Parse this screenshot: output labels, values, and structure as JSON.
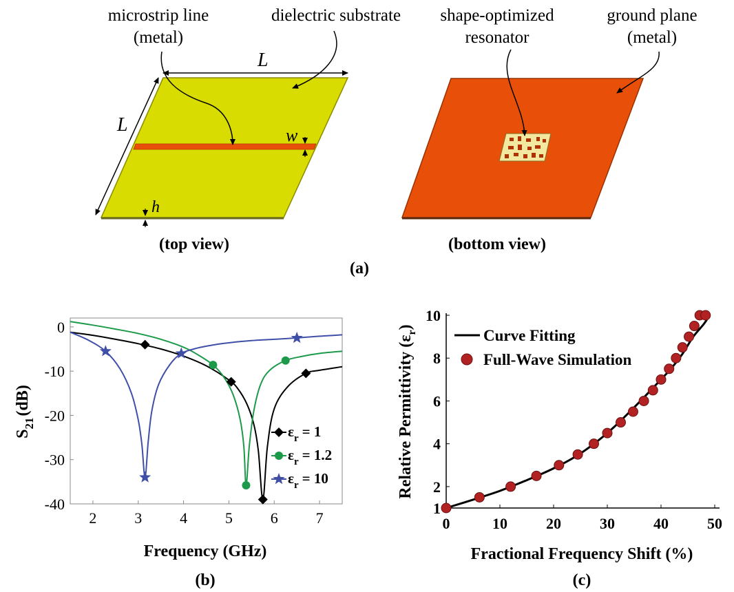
{
  "figure_a": {
    "callouts": {
      "microstrip_1": "microstrip line",
      "microstrip_2": "(metal)",
      "substrate": "dielectric substrate",
      "resonator_1": "shape-optimized",
      "resonator_2": "resonator",
      "ground_1": "ground plane",
      "ground_2": "(metal)"
    },
    "dims": {
      "L_top": "L",
      "L_side": "L",
      "w": "w",
      "h": "h"
    },
    "top_view": "(top view)",
    "bottom_view": "(bottom view)",
    "panel": "(a)",
    "colors": {
      "substrate": "#D8DC00",
      "metal": "#E8500A",
      "resonator_bg": "#F3E8A0"
    }
  },
  "chart_data": [
    {
      "type": "line",
      "panel": "(b)",
      "xlabel": "Frequency (GHz)",
      "ylabel_main": "S",
      "ylabel_sub": "21",
      "ylabel_unit": "(dB)",
      "xlim": [
        1.5,
        7.5
      ],
      "ylim": [
        -40,
        2
      ],
      "xticks": [
        "2",
        "3",
        "4",
        "5",
        "6",
        "7"
      ],
      "yticks": [
        "0",
        "-10",
        "-20",
        "-30",
        "-40"
      ],
      "series": [
        {
          "legend_label": "ε",
          "legend_sub": "r",
          "legend_value": "= 1",
          "color": "#000000",
          "marker": "diamond",
          "x": [
            1.5,
            2.0,
            2.5,
            3.0,
            3.5,
            4.0,
            4.5,
            5.0,
            5.2,
            5.4,
            5.55,
            5.65,
            5.75,
            5.85,
            6.0,
            6.3,
            6.7,
            7.0,
            7.5
          ],
          "y": [
            -1.2,
            -1.9,
            -2.8,
            -3.8,
            -5.0,
            -6.6,
            -8.8,
            -12.0,
            -14.0,
            -17.5,
            -22.0,
            -28.0,
            -39.0,
            -27.0,
            -18.5,
            -13.5,
            -10.5,
            -9.8,
            -9.0
          ],
          "marker_x": [
            3.15,
            5.05,
            5.75,
            6.7
          ],
          "marker_y": [
            -4.0,
            -12.4,
            -39.0,
            -10.5
          ]
        },
        {
          "legend_label": "ε",
          "legend_sub": "r",
          "legend_value": "= 1.2",
          "color": "#1C9A4A",
          "marker": "circle",
          "x": [
            1.5,
            2.0,
            2.5,
            3.0,
            3.5,
            4.0,
            4.3,
            4.65,
            4.9,
            5.1,
            5.25,
            5.33,
            5.38,
            5.45,
            5.55,
            5.7,
            5.9,
            6.25,
            6.6,
            7.0,
            7.5
          ],
          "y": [
            1.2,
            0.4,
            -0.5,
            -1.5,
            -2.8,
            -4.6,
            -6.2,
            -8.6,
            -11.5,
            -15.5,
            -21.0,
            -27.0,
            -35.8,
            -27.0,
            -19.0,
            -13.0,
            -9.8,
            -7.6,
            -6.7,
            -6.0,
            -5.5
          ],
          "marker_x": [
            4.65,
            5.38,
            6.25
          ],
          "marker_y": [
            -8.6,
            -35.8,
            -7.6
          ]
        },
        {
          "legend_label": "ε",
          "legend_sub": "r",
          "legend_value": "= 10",
          "color": "#3F4FA8",
          "marker": "star",
          "x": [
            1.5,
            1.9,
            2.28,
            2.6,
            2.85,
            3.0,
            3.08,
            3.15,
            3.22,
            3.3,
            3.45,
            3.7,
            3.95,
            4.3,
            4.7,
            5.0,
            5.5,
            6.0,
            6.5,
            7.0,
            7.5
          ],
          "y": [
            -1.2,
            -3.0,
            -5.5,
            -9.5,
            -15.0,
            -21.0,
            -26.5,
            -34.0,
            -26.0,
            -19.0,
            -13.0,
            -8.5,
            -6.0,
            -4.8,
            -4.0,
            -3.6,
            -3.1,
            -2.8,
            -2.5,
            -2.1,
            -1.8
          ],
          "marker_x": [
            2.28,
            3.15,
            3.95,
            6.5
          ],
          "marker_y": [
            -5.5,
            -34.0,
            -6.0,
            -2.5
          ]
        }
      ]
    },
    {
      "type": "line",
      "panel": "(c)",
      "xlabel": "Fractional Frequency Shift (%)",
      "ylabel_main": "Relative Permittivity (ε",
      "ylabel_sub": "r",
      "ylabel_close": ")",
      "xlim": [
        0,
        50
      ],
      "ylim": [
        1,
        10
      ],
      "xticks": [
        "0",
        "10",
        "20",
        "30",
        "40",
        "50"
      ],
      "yticks": [
        "1",
        "2",
        "4",
        "6",
        "8",
        "10"
      ],
      "legend": [
        "Curve Fitting",
        "Full-Wave Simulation"
      ],
      "series": [
        {
          "name": "Curve Fitting",
          "color": "#000000",
          "x": [
            0,
            5,
            10,
            15,
            20,
            25,
            30,
            35,
            40,
            42,
            44,
            46,
            48,
            49
          ],
          "y": [
            1.0,
            1.39,
            1.8,
            2.3,
            2.85,
            3.55,
            4.5,
            5.7,
            7.0,
            7.55,
            8.2,
            9.0,
            9.6,
            10.0
          ]
        },
        {
          "name": "Full-Wave Simulation",
          "color": "#B22222",
          "marker": "circle",
          "x": [
            0,
            6.2,
            12,
            16.8,
            21,
            24.5,
            27.5,
            30,
            32.5,
            34.8,
            36.8,
            38.5,
            40,
            41.5,
            42.8,
            44,
            45.2,
            46.2,
            47.2,
            48.3
          ],
          "y": [
            1.0,
            1.5,
            2.0,
            2.5,
            3.0,
            3.5,
            4.0,
            4.5,
            5.0,
            5.5,
            6.0,
            6.5,
            7.0,
            7.5,
            8.0,
            8.5,
            9.0,
            9.5,
            10.0,
            10.0
          ]
        }
      ]
    }
  ]
}
